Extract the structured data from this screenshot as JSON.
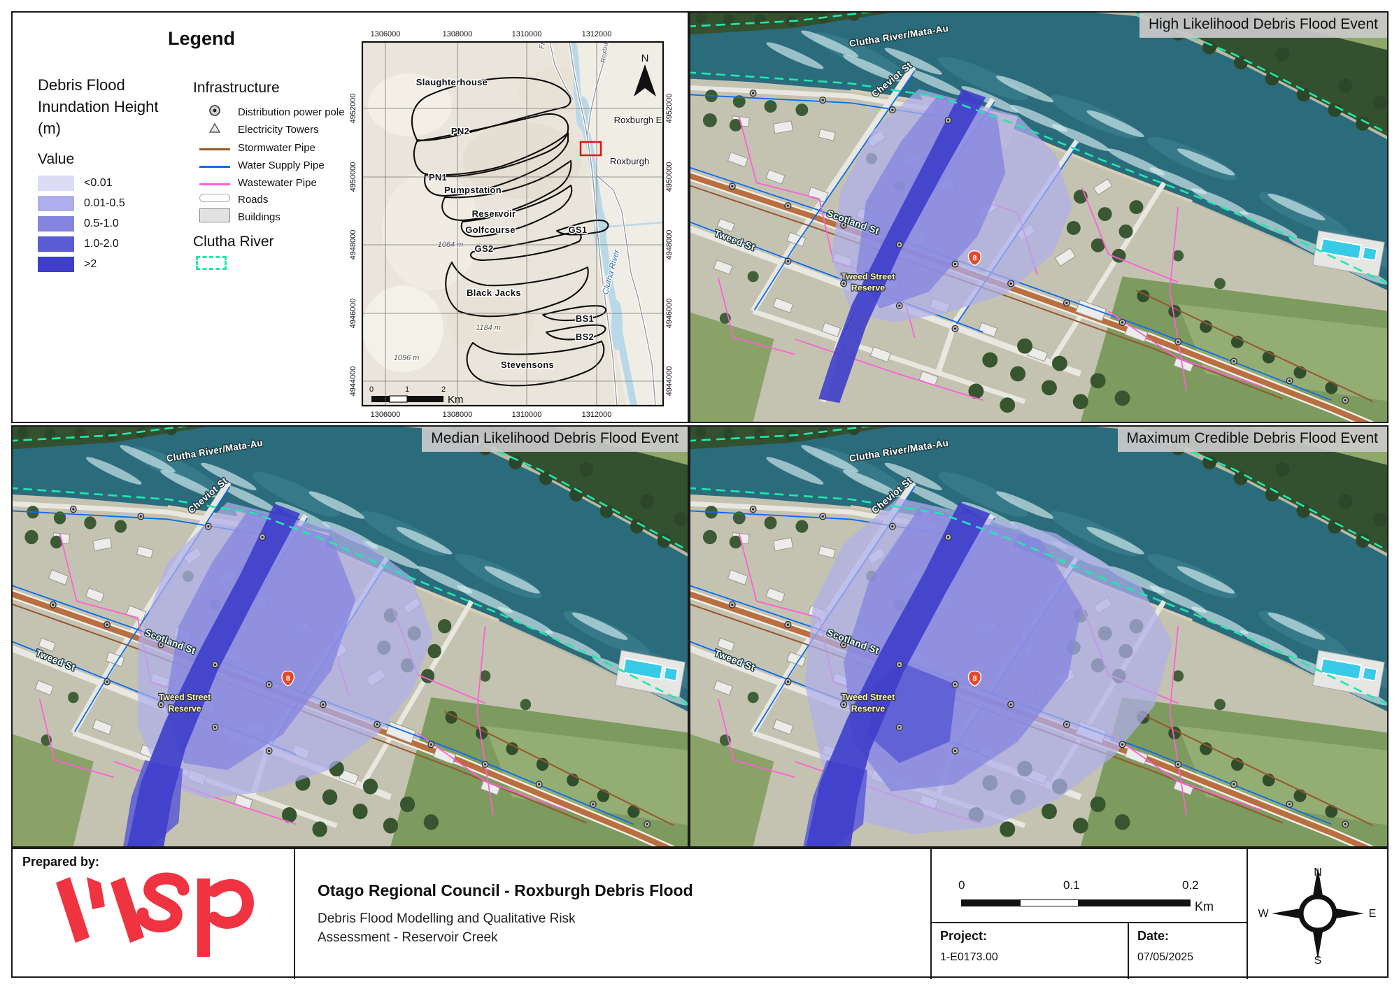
{
  "legend": {
    "title": "Legend",
    "inundation": {
      "heading_lines": [
        "Debris Flood",
        "Inundation Height",
        "(m)"
      ],
      "value_label": "Value",
      "classes": [
        {
          "label": "<0.01",
          "color": "#dcdcf6"
        },
        {
          "label": "0.01-0.5",
          "color": "#aeaeec"
        },
        {
          "label": "0.5-1.0",
          "color": "#8585e0"
        },
        {
          "label": "1.0-2.0",
          "color": "#5b5bd6"
        },
        {
          "label": ">2",
          "color": "#3e3ecb"
        }
      ]
    },
    "infrastructure": {
      "heading": "Infrastructure",
      "items": [
        {
          "label": "Distribution power pole"
        },
        {
          "label": "Electricity Towers"
        },
        {
          "label": "Stormwater Pipe",
          "color": "#96572f"
        },
        {
          "label": "Water Supply Pipe",
          "color": "#0a6cf0"
        },
        {
          "label": "Wastewater Pipe",
          "color": "#ff5fd8"
        },
        {
          "label": "Roads"
        },
        {
          "label": "Buildings"
        }
      ]
    },
    "clutha": {
      "heading": "Clutha River",
      "color": "#1fe9ac"
    }
  },
  "overview_map": {
    "x_ticks": [
      "1306000",
      "1308000",
      "1310000",
      "1312000"
    ],
    "y_ticks": [
      "4952000",
      "4950000",
      "4948000",
      "4946000",
      "4944000"
    ],
    "catchments": [
      "Slaughterhouse",
      "PN2",
      "PN1",
      "Pumpstation",
      "Reservoir",
      "Golfcourse",
      "GS1",
      "GS2",
      "Black Jacks",
      "BS1",
      "BS2",
      "Stevensons"
    ],
    "places": [
      "Roxburgh E",
      "Roxburgh"
    ],
    "river_label": "Clutha River",
    "road_labels": [
      "Fr",
      "Roxbu"
    ],
    "elevations": [
      "1064 m",
      "1184 m",
      "1096 m"
    ],
    "scalebar": {
      "ticks": [
        "0",
        "1",
        "2"
      ],
      "unit": "Km"
    },
    "north_label": "N"
  },
  "panels": [
    {
      "title": "High Likelihood Debris Flood Event"
    },
    {
      "title": "Median Likelihood Debris Flood Event"
    },
    {
      "title": "Maximum Credible Debris Flood Event"
    }
  ],
  "aerial_labels": {
    "river": "Clutha River/Mata-Au",
    "cheviot": "Cheviot St",
    "scotland": "Scotland St",
    "tweed": "Tweed St",
    "reserve_line1": "Tweed Street",
    "reserve_line2": "Reserve",
    "route_shield": "8"
  },
  "footer": {
    "prepared_by": "Prepared by:",
    "logo_text": "wsp",
    "title": "Otago Regional Council - Roxburgh Debris Flood",
    "subtitle_line1": "Debris Flood Modelling and Qualitative Risk",
    "subtitle_line2": "Assessment - Reservoir Creek",
    "scalebar": {
      "ticks": [
        "0",
        "0.1",
        "0.2"
      ],
      "unit": "Km"
    },
    "project_label": "Project:",
    "project_value": "1-E0173.00",
    "date_label": "Date:",
    "date_value": "07/05/2025",
    "compass": {
      "n": "N",
      "e": "E",
      "s": "S",
      "w": "W"
    }
  },
  "colors": {
    "river_water": "#2a6b7c",
    "clutha_boundary": "#1fe9ac",
    "water_supply": "#0a6cf0",
    "wastewater": "#ff5fd8",
    "stormwater": "#96572f",
    "scotland_road": "#b96f40",
    "route_shield": "#e2492a",
    "logo_red": "#ef3340"
  }
}
